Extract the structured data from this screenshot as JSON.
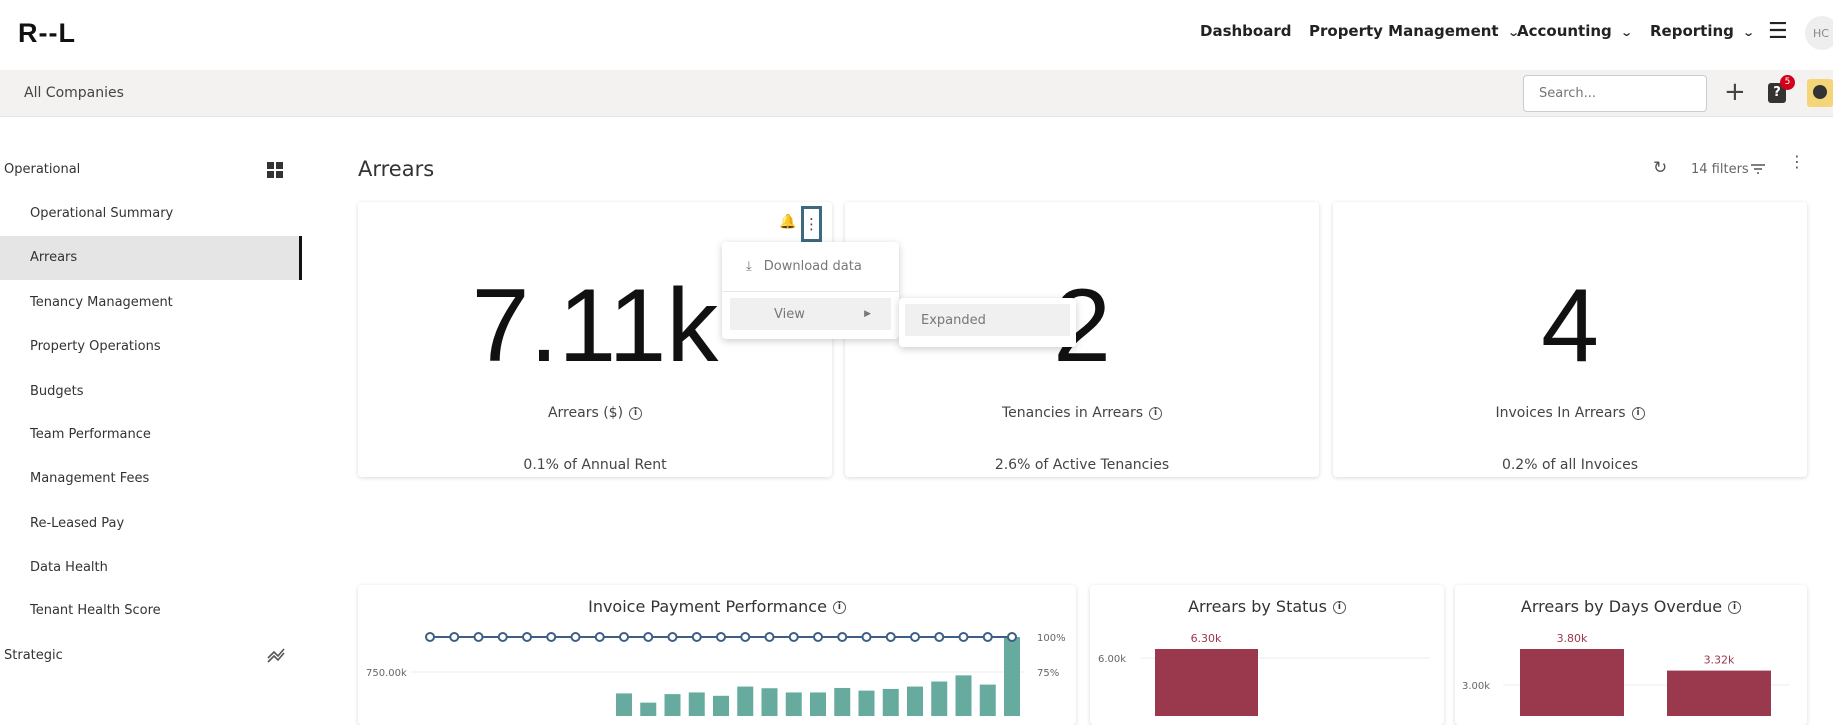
{
  "header": {
    "logo": "R--L",
    "nav": [
      {
        "label": "Dashboard",
        "dropdown": false
      },
      {
        "label": "Property Management",
        "dropdown": true
      },
      {
        "label": "Accounting",
        "dropdown": true
      },
      {
        "label": "Reporting",
        "dropdown": true
      }
    ],
    "avatar": "HC"
  },
  "subbar": {
    "company": "All Companies",
    "search_placeholder": "Search...",
    "help_badge": "5"
  },
  "sidebar": {
    "sections": [
      {
        "label": "Operational"
      },
      {
        "label": "Strategic"
      }
    ],
    "items": [
      {
        "label": "Operational Summary"
      },
      {
        "label": "Arrears",
        "active": true
      },
      {
        "label": "Tenancy Management"
      },
      {
        "label": "Property Operations"
      },
      {
        "label": "Budgets"
      },
      {
        "label": "Team Performance"
      },
      {
        "label": "Management Fees"
      },
      {
        "label": "Re-Leased Pay"
      },
      {
        "label": "Data Health"
      },
      {
        "label": "Tenant Health Score"
      }
    ]
  },
  "page": {
    "title": "Arrears",
    "filters": "14 filters"
  },
  "cards": [
    {
      "value": "7.11k",
      "label": "Arrears ($)",
      "footer": "0.1% of Annual Rent"
    },
    {
      "value": "2",
      "label": "Tenancies in Arrears",
      "footer": "2.6% of Active Tenancies"
    },
    {
      "value": "4",
      "label": "Invoices In Arrears",
      "footer": "0.2% of all Invoices"
    }
  ],
  "menu": {
    "download": "Download data",
    "view": "View",
    "submenu": [
      "Expanded"
    ]
  },
  "colors": {
    "teal": "#67ab9f",
    "line": "#3d5f85",
    "maroon": "#9a384d",
    "menu_outline": "#3d6a80",
    "badge": "#d0021b"
  },
  "chart_data": [
    {
      "type": "bar+line",
      "title": "Invoice Payment Performance",
      "y_left_ticks": [
        "750.00k"
      ],
      "y_right_ticks": [
        "100%",
        "75%"
      ],
      "bars": [
        null,
        null,
        null,
        null,
        null,
        null,
        null,
        null,
        597,
        531,
        592,
        604,
        580,
        646,
        634,
        604,
        604,
        636,
        617,
        629,
        646,
        682,
        726,
        660,
        1000
      ],
      "bar_unit": "k",
      "line": [
        100,
        100,
        100,
        100,
        100,
        100,
        100,
        100,
        100,
        100,
        100,
        100,
        100,
        100,
        100,
        100,
        100,
        100,
        100,
        100,
        100,
        100,
        100,
        100,
        100
      ],
      "line_unit": "%"
    },
    {
      "type": "bar",
      "title": "Arrears by Status",
      "y_ticks": [
        "6.00k"
      ],
      "values": [
        6.3
      ],
      "labels": [
        "6.30k"
      ],
      "unit": "k"
    },
    {
      "type": "bar",
      "title": "Arrears by Days Overdue",
      "y_ticks": [
        "3.00k"
      ],
      "values": [
        3.8,
        3.32
      ],
      "labels": [
        "3.80k",
        "3.32k"
      ],
      "unit": "k"
    }
  ]
}
